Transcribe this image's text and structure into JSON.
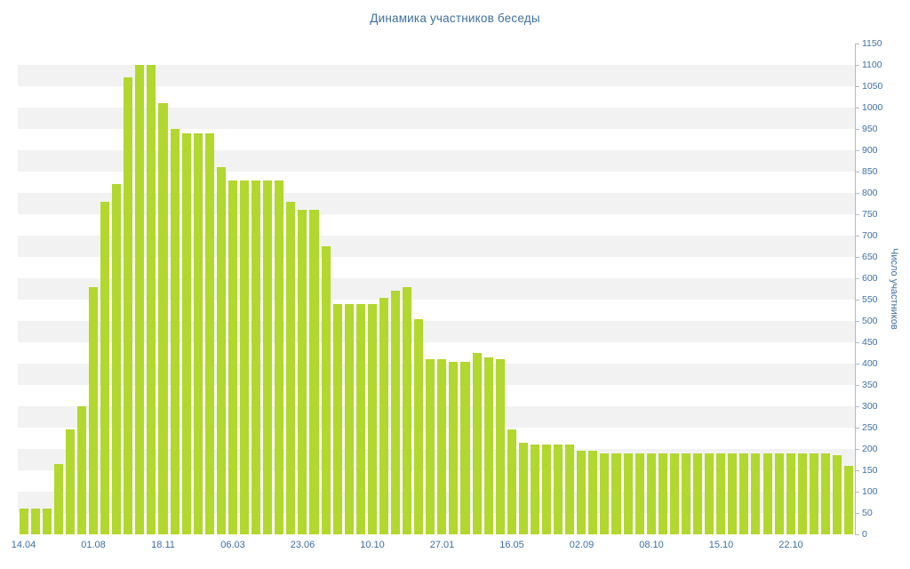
{
  "chart_data": {
    "type": "bar",
    "title": "Динамика участников беседы",
    "ylabel": "Число участников",
    "xlabel": "",
    "ylim": [
      0,
      1150
    ],
    "ytick_step": 50,
    "legend": false,
    "background_stripes": true,
    "colors": {
      "bar": "#b2d72e",
      "title": "#41709d",
      "tick_label": "#3d6fa8",
      "axis_line": "#b3bac2",
      "stripe": "#f2f2f2"
    },
    "x_tick_labels": [
      {
        "index": 0,
        "label": "14.04"
      },
      {
        "index": 6,
        "label": "01.08"
      },
      {
        "index": 12,
        "label": "18.11"
      },
      {
        "index": 18,
        "label": "06.03"
      },
      {
        "index": 24,
        "label": "23.06"
      },
      {
        "index": 30,
        "label": "10.10"
      },
      {
        "index": 36,
        "label": "27.01"
      },
      {
        "index": 42,
        "label": "16.05"
      },
      {
        "index": 48,
        "label": "02.09"
      },
      {
        "index": 54,
        "label": "08.10"
      },
      {
        "index": 60,
        "label": "15.10"
      },
      {
        "index": 66,
        "label": "22.10"
      }
    ],
    "values": [
      60,
      60,
      60,
      165,
      245,
      300,
      580,
      780,
      820,
      1070,
      1100,
      1100,
      1010,
      950,
      940,
      940,
      940,
      860,
      830,
      830,
      830,
      830,
      830,
      780,
      760,
      760,
      675,
      540,
      540,
      540,
      540,
      555,
      570,
      580,
      505,
      410,
      410,
      405,
      405,
      425,
      415,
      410,
      245,
      215,
      210,
      210,
      210,
      210,
      195,
      195,
      190,
      190,
      190,
      190,
      190,
      190,
      190,
      190,
      190,
      190,
      190,
      190,
      190,
      190,
      190,
      190,
      190,
      190,
      190,
      190,
      185,
      160
    ]
  }
}
